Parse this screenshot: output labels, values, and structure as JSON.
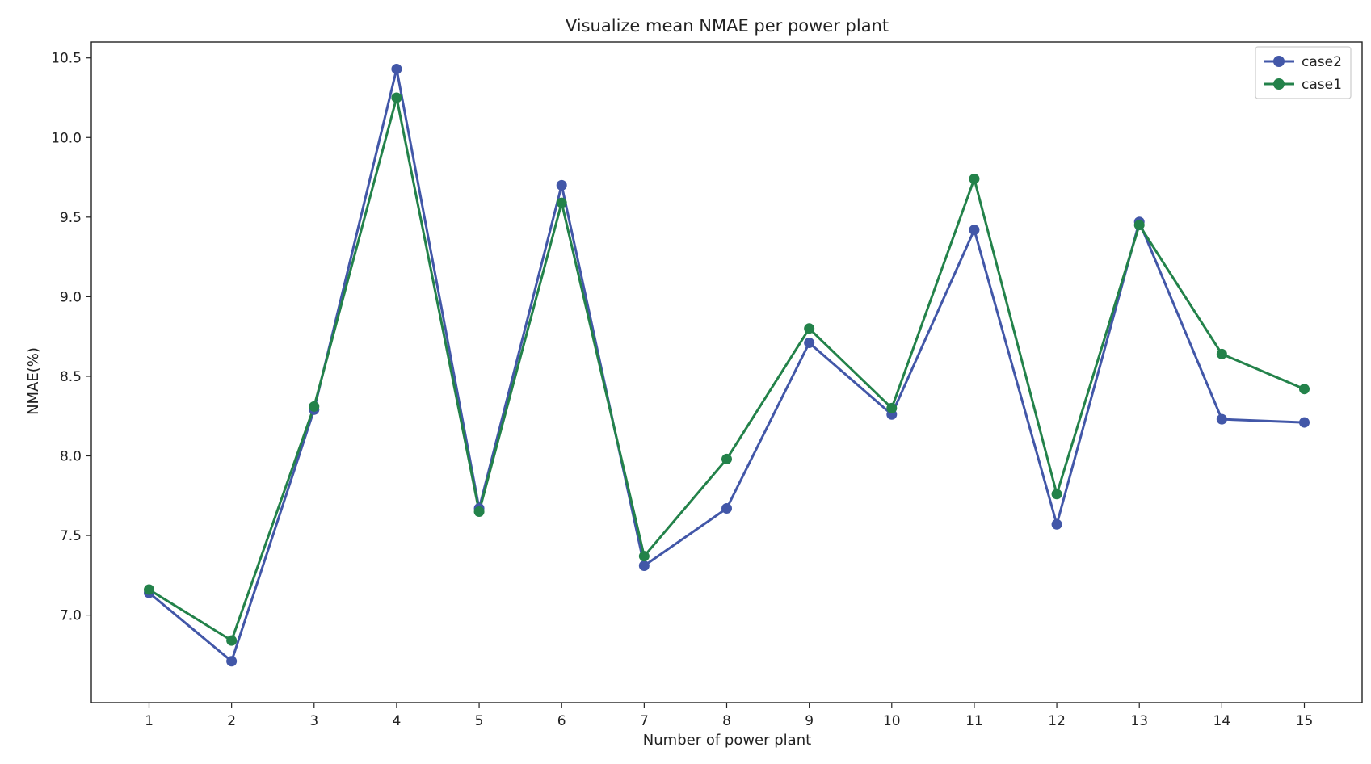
{
  "chart_data": {
    "type": "line",
    "title": "Visualize mean NMAE per power plant",
    "xlabel": "Number of power plant",
    "ylabel": "NMAE(%)",
    "x": [
      1,
      2,
      3,
      4,
      5,
      6,
      7,
      8,
      9,
      10,
      11,
      12,
      13,
      14,
      15
    ],
    "xlim": [
      0.3,
      15.7
    ],
    "ylim": [
      6.45,
      10.6
    ],
    "yticks": [
      7.0,
      7.5,
      8.0,
      8.5,
      9.0,
      9.5,
      10.0,
      10.5
    ],
    "grid": false,
    "legend_position": "top-right",
    "series": [
      {
        "name": "case2",
        "color": "#4257a8",
        "marker": "circle",
        "values": [
          7.14,
          6.71,
          8.29,
          10.43,
          7.67,
          9.7,
          7.31,
          7.67,
          8.71,
          8.26,
          9.42,
          7.57,
          9.47,
          8.23,
          8.21
        ]
      },
      {
        "name": "case1",
        "color": "#23824a",
        "marker": "circle",
        "values": [
          7.16,
          6.84,
          8.31,
          10.25,
          7.65,
          9.59,
          7.37,
          7.98,
          8.8,
          8.3,
          9.74,
          7.76,
          9.45,
          8.64,
          8.42
        ]
      }
    ]
  }
}
